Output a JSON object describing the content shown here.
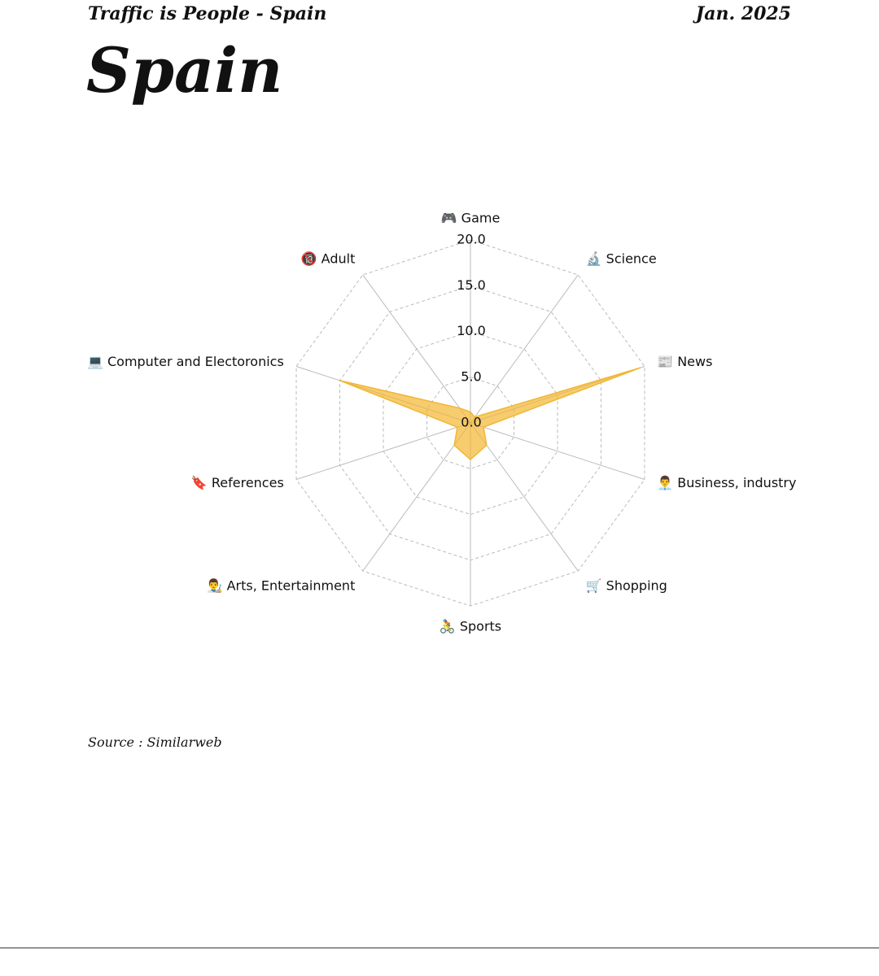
{
  "header": {
    "left": "Traffic is People - Spain",
    "right": "Jan. 2025"
  },
  "title": "Spain",
  "source": "Source : Similarweb",
  "chart_data": {
    "type": "radar",
    "categories": [
      "🎮 Game",
      "🔬 Science",
      "📰 News",
      "👨‍💼 Business, industry",
      "🛒 Shopping",
      "🚴 Sports",
      "👨‍🎨 Arts, Entertainment",
      "🔖 References",
      "💻 Computer and Electoronics",
      "🔞 Adult"
    ],
    "values": [
      1.2,
      0.8,
      19.5,
      1.5,
      3.0,
      4.0,
      3.0,
      1.5,
      15.0,
      2.0
    ],
    "color": "#f2b632",
    "ylim": [
      0,
      20
    ],
    "yticks": [
      {
        "value": 0,
        "label": "0.0"
      },
      {
        "value": 5,
        "label": "5.0"
      },
      {
        "value": 10,
        "label": "10.0"
      },
      {
        "value": 15,
        "label": "15.0"
      },
      {
        "value": 20,
        "label": "20.0"
      }
    ],
    "grid": true
  }
}
